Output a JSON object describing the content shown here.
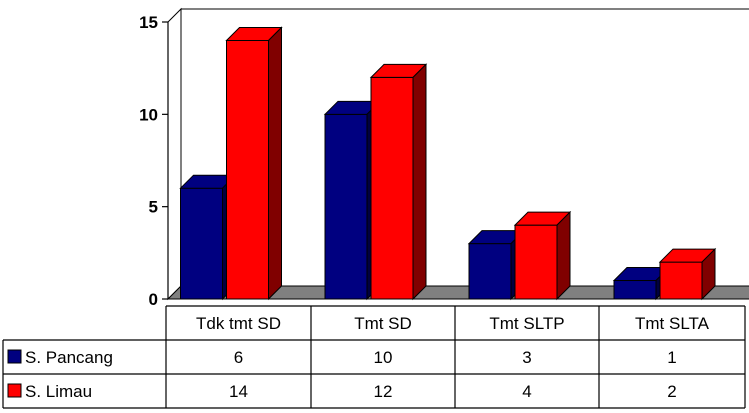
{
  "chart_data": {
    "type": "bar",
    "style": "3d-clustered-column-with-data-table",
    "categories": [
      "Tdk tmt SD",
      "Tmt SD",
      "Tmt SLTP",
      "Tmt SLTA"
    ],
    "series": [
      {
        "name": "S. Pancang",
        "values": [
          6,
          10,
          3,
          1
        ],
        "color": "#000080",
        "shade": "#000040"
      },
      {
        "name": "S. Limau",
        "values": [
          14,
          12,
          4,
          2
        ],
        "color": "#ff0000",
        "shade": "#800000"
      }
    ],
    "ylim": [
      0,
      15
    ],
    "yticks": [
      "0",
      "5",
      "10",
      "15"
    ],
    "grid": false,
    "wall_color": "#ffffff",
    "floor_color": "#808080",
    "legend": "in-data-table"
  }
}
